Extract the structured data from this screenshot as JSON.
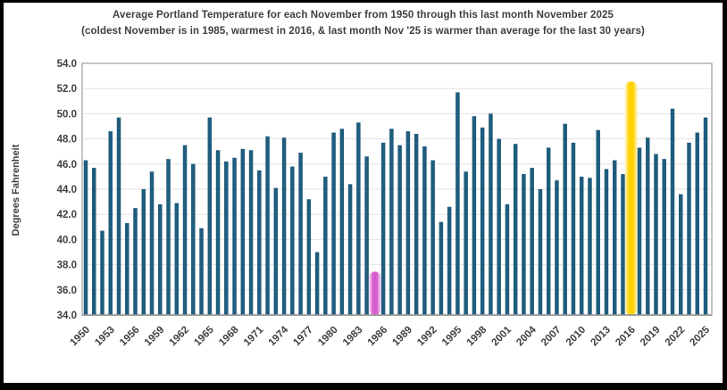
{
  "title": {
    "line1": "Average Portland Temperature for each November from 1950 through this last month November 2025",
    "line2": "(coldest November is in 1985, warmest in 2016, & last month Nov '25 is warmer than average for the last 30 years)"
  },
  "chart_data": {
    "type": "bar",
    "title": "Average Portland Temperature for each November from 1950 through this last month November 2025",
    "subtitle": "(coldest November is in 1985, warmest in 2016, & last month Nov '25 is warmer than average for the last 30 years)",
    "xlabel": "",
    "ylabel": "Degrees Fahrenheit",
    "ylim": [
      34.0,
      54.0
    ],
    "ytick_step": 2.0,
    "grid": true,
    "legend_position": "none",
    "categories": [
      1950,
      1951,
      1952,
      1953,
      1954,
      1955,
      1956,
      1957,
      1958,
      1959,
      1960,
      1961,
      1962,
      1963,
      1964,
      1965,
      1966,
      1967,
      1968,
      1969,
      1970,
      1971,
      1972,
      1973,
      1974,
      1975,
      1976,
      1977,
      1978,
      1979,
      1980,
      1981,
      1982,
      1983,
      1984,
      1985,
      1986,
      1987,
      1988,
      1989,
      1990,
      1991,
      1992,
      1993,
      1994,
      1995,
      1996,
      1997,
      1998,
      1999,
      2000,
      2001,
      2002,
      2003,
      2004,
      2005,
      2006,
      2007,
      2008,
      2009,
      2010,
      2011,
      2012,
      2013,
      2014,
      2015,
      2016,
      2017,
      2018,
      2019,
      2020,
      2021,
      2022,
      2023,
      2024,
      2025
    ],
    "values": [
      46.3,
      45.7,
      40.7,
      48.6,
      49.7,
      41.3,
      42.5,
      44.0,
      45.4,
      42.8,
      46.4,
      42.9,
      47.5,
      46.0,
      40.9,
      49.7,
      47.1,
      46.2,
      46.5,
      47.2,
      47.1,
      45.5,
      48.2,
      44.1,
      48.1,
      45.8,
      46.9,
      43.2,
      39.0,
      45.0,
      48.5,
      48.8,
      44.4,
      49.3,
      46.6,
      37.3,
      47.7,
      48.8,
      47.5,
      48.6,
      48.4,
      47.4,
      46.3,
      41.4,
      42.6,
      51.7,
      45.4,
      49.8,
      48.9,
      50.0,
      48.0,
      42.8,
      47.6,
      45.2,
      45.7,
      44.0,
      47.3,
      44.7,
      49.2,
      47.7,
      45.0,
      44.9,
      48.7,
      45.6,
      46.3,
      45.2,
      52.4,
      47.3,
      48.1,
      46.8,
      46.4,
      50.4,
      43.6,
      47.7,
      48.5,
      49.7
    ],
    "xtick_labels": [
      1950,
      1953,
      1956,
      1959,
      1962,
      1965,
      1968,
      1971,
      1974,
      1977,
      1980,
      1983,
      1986,
      1989,
      1992,
      1995,
      1998,
      2001,
      2004,
      2007,
      2010,
      2013,
      2016,
      2019,
      2022,
      2025
    ],
    "highlights": [
      {
        "year": 1985,
        "note": "coldest November",
        "core_color": "#D55CCF",
        "glow_color": "#F3CBF0"
      },
      {
        "year": 2016,
        "note": "warmest November",
        "core_color": "#FFD200",
        "glow_color": "#FFF0A0"
      }
    ]
  },
  "style": {
    "bar_color": "#1F5C7D",
    "grid_color": "#E2E2E2",
    "frame_color": "#A6A6A6",
    "axis_color": "#8F8F8F",
    "text_color": "#3F3F3F",
    "background": "#FFFFFF",
    "border_color": "#000000"
  }
}
